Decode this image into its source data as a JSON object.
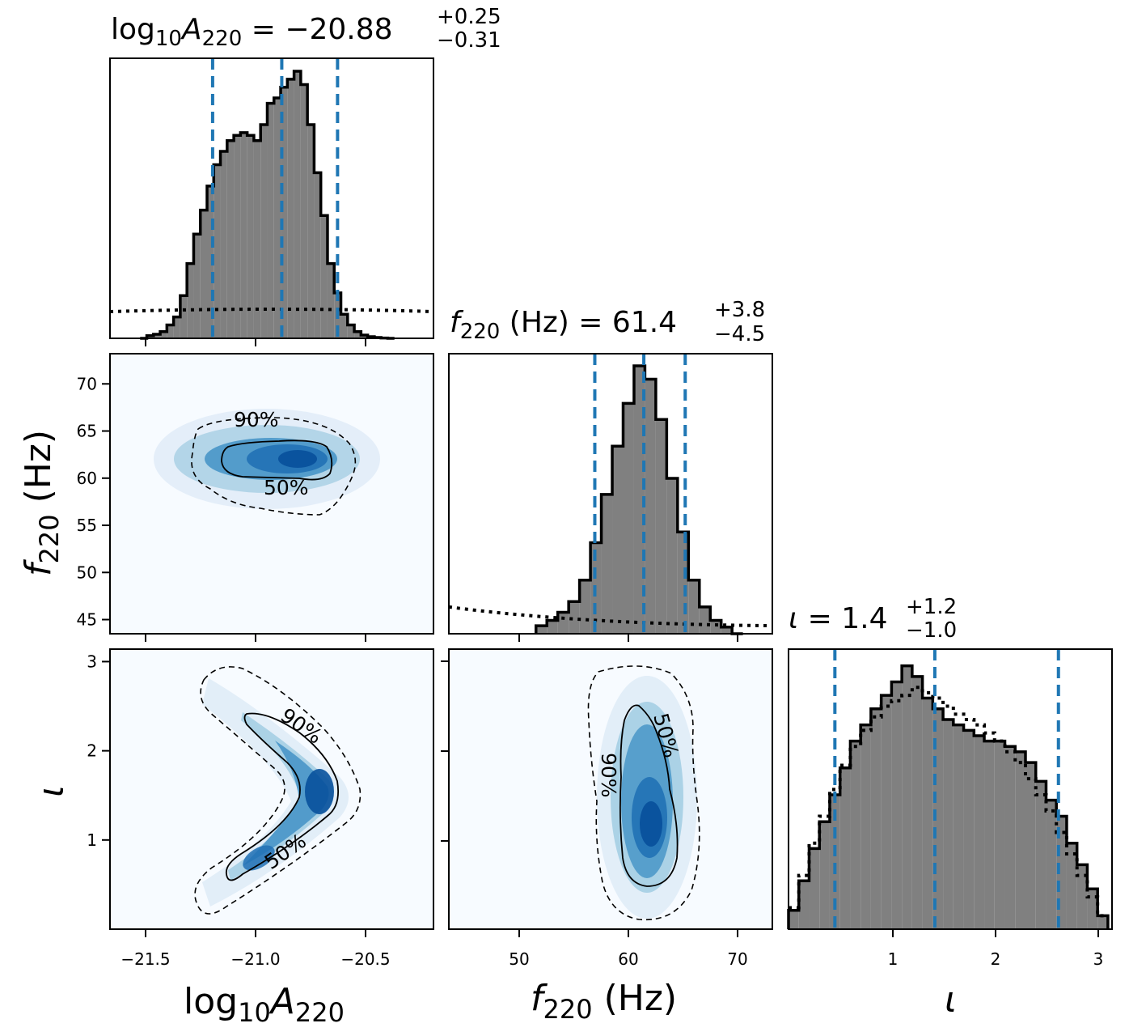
{
  "chart_data": [
    {
      "type": "histogram",
      "panel": "1D marginal",
      "parameter": "log10A220",
      "title": {
        "prefix": "log",
        "sub1": "10",
        "var": "A",
        "sub2": "220",
        "median": " = −20.88",
        "plus": "+0.25",
        "minus": "−0.31"
      },
      "xlim": [
        -21.65,
        -20.2
      ],
      "quantile_lines": [
        -21.19,
        -20.88,
        -20.63
      ],
      "bins_x": [
        -21.5,
        -21.47,
        -21.44,
        -21.41,
        -21.38,
        -21.35,
        -21.32,
        -21.29,
        -21.26,
        -21.23,
        -21.2,
        -21.17,
        -21.14,
        -21.11,
        -21.08,
        -21.05,
        -21.02,
        -20.99,
        -20.96,
        -20.93,
        -20.9,
        -20.87,
        -20.84,
        -20.81,
        -20.78,
        -20.75,
        -20.72,
        -20.69,
        -20.66,
        -20.63,
        -20.6,
        -20.57,
        -20.54,
        -20.51,
        -20.48,
        -20.45,
        -20.42,
        -20.39
      ],
      "density": [
        0.0,
        0.01,
        0.015,
        0.025,
        0.05,
        0.08,
        0.16,
        0.28,
        0.39,
        0.48,
        0.57,
        0.65,
        0.7,
        0.74,
        0.76,
        0.77,
        0.76,
        0.74,
        0.8,
        0.88,
        0.9,
        0.94,
        0.97,
        1.0,
        0.95,
        0.8,
        0.62,
        0.46,
        0.28,
        0.17,
        0.09,
        0.05,
        0.025,
        0.012,
        0.006,
        0.003,
        0.001,
        0.0
      ],
      "prior_level": 0.1
    },
    {
      "type": "histogram",
      "panel": "1D marginal",
      "parameter": "f220 (Hz)",
      "title": {
        "var": "f",
        "sub": "220",
        "unit": " (Hz) = 61.4",
        "plus": "+3.8",
        "minus": "−4.5"
      },
      "xlim": [
        43.5,
        73.2
      ],
      "xticks": [
        50,
        60,
        70
      ],
      "quantile_lines": [
        56.9,
        61.4,
        65.2
      ],
      "bins_x": [
        52,
        53,
        54,
        55,
        56,
        57,
        58,
        59,
        60,
        61,
        62,
        63,
        64,
        65,
        66,
        67,
        68,
        69,
        70
      ],
      "density": [
        0.03,
        0.05,
        0.08,
        0.12,
        0.2,
        0.34,
        0.52,
        0.7,
        0.86,
        1.0,
        0.95,
        0.8,
        0.58,
        0.38,
        0.2,
        0.1,
        0.05,
        0.025,
        0.0
      ],
      "prior_level_left": 0.1,
      "prior_level_right": 0.03
    },
    {
      "type": "histogram",
      "panel": "1D marginal",
      "parameter": "iota",
      "title": {
        "var": "ι",
        "median": " = 1.4",
        "plus": "+1.2",
        "minus": "−1.0"
      },
      "xlim": [
        0.0,
        3.14
      ],
      "xticks": [
        1,
        2,
        3
      ],
      "quantile_lines": [
        0.45,
        1.42,
        2.62
      ],
      "bins_x": [
        0.05,
        0.15,
        0.25,
        0.35,
        0.45,
        0.55,
        0.65,
        0.75,
        0.85,
        0.95,
        1.05,
        1.15,
        1.25,
        1.35,
        1.45,
        1.55,
        1.65,
        1.75,
        1.85,
        1.95,
        2.05,
        2.15,
        2.25,
        2.35,
        2.45,
        2.55,
        2.65,
        2.75,
        2.85,
        2.95,
        3.05
      ],
      "density": [
        0.07,
        0.18,
        0.3,
        0.4,
        0.5,
        0.6,
        0.7,
        0.76,
        0.82,
        0.87,
        0.92,
        0.98,
        0.94,
        0.86,
        0.82,
        0.78,
        0.76,
        0.74,
        0.72,
        0.7,
        0.7,
        0.68,
        0.66,
        0.62,
        0.55,
        0.48,
        0.42,
        0.32,
        0.24,
        0.15,
        0.05
      ],
      "prior_density": [
        0.08,
        0.2,
        0.32,
        0.42,
        0.52,
        0.61,
        0.68,
        0.74,
        0.79,
        0.83,
        0.85,
        0.87,
        0.9,
        0.88,
        0.86,
        0.83,
        0.8,
        0.78,
        0.76,
        0.73,
        0.7,
        0.66,
        0.62,
        0.56,
        0.5,
        0.44,
        0.36,
        0.28,
        0.2,
        0.12,
        0.05
      ]
    },
    {
      "type": "heatmap",
      "panel": "2D joint",
      "x": "log10A220",
      "y": "f220 (Hz)",
      "xlim": [
        -21.65,
        -20.2
      ],
      "ylim": [
        43.5,
        73.2
      ],
      "xticks": [
        "−21.5",
        "−21.0",
        "−20.5"
      ],
      "yticks": [
        45,
        50,
        55,
        60,
        65,
        70
      ],
      "contour_labels": [
        "90%",
        "50%"
      ],
      "peak": {
        "x": -20.78,
        "y": 61.4
      }
    },
    {
      "type": "heatmap",
      "panel": "2D joint",
      "x": "log10A220",
      "y": "iota",
      "xlim": [
        -21.65,
        -20.2
      ],
      "ylim": [
        0.0,
        3.14
      ],
      "xticks": [
        "−21.5",
        "−21.0",
        "−20.5"
      ],
      "yticks": [
        1,
        2,
        3
      ],
      "contour_labels": [
        "90%",
        "50%"
      ],
      "peak": {
        "x": -20.75,
        "y": 1.5
      }
    },
    {
      "type": "heatmap",
      "panel": "2D joint",
      "x": "f220 (Hz)",
      "y": "iota",
      "xlim": [
        43.5,
        73.2
      ],
      "ylim": [
        0.0,
        3.14
      ],
      "xticks": [
        50,
        60,
        70
      ],
      "yticks": [
        1,
        2,
        3
      ],
      "contour_labels": [
        "90%",
        "50%"
      ],
      "peak": {
        "x": 61.5,
        "y": 1.2
      }
    }
  ],
  "axis_labels": {
    "x1": {
      "pre": "log",
      "sub1": "10",
      "var": "A",
      "sub2": "220"
    },
    "x2": {
      "var": "f",
      "sub": "220",
      "unit": " (Hz)"
    },
    "x3": {
      "var": "ι"
    },
    "y1": {
      "var": "f",
      "sub": "220",
      "unit": " (Hz)"
    },
    "y2": {
      "var": "ι"
    }
  },
  "colors": {
    "hist_fill": "#808080",
    "hist_edge": "#000000",
    "quantile_line": "#1f77b4",
    "heat_low": "#f7fbff",
    "heat_high": "#08519c"
  }
}
